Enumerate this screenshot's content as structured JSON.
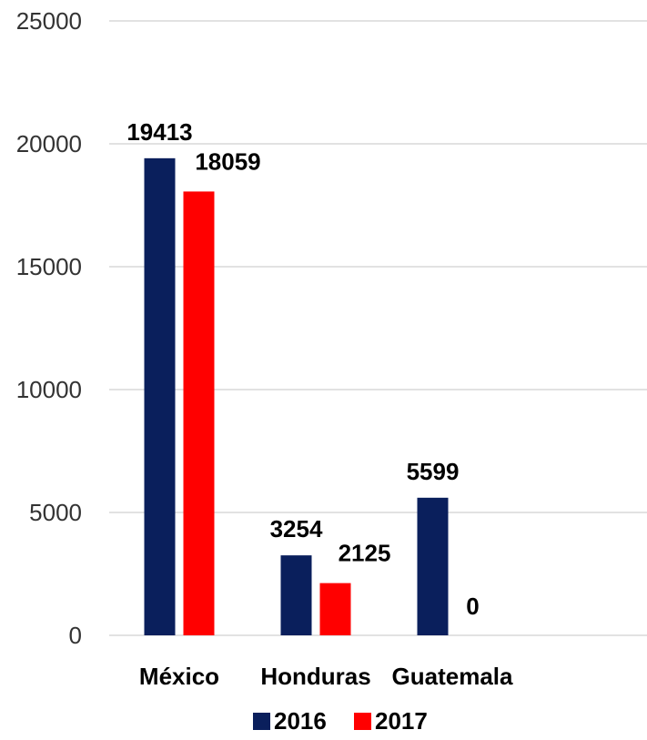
{
  "chart_data": {
    "type": "bar",
    "categories": [
      "México",
      "Honduras",
      "Guatemala"
    ],
    "series": [
      {
        "name": "2016",
        "color": "#0a1f5c",
        "values": [
          19413,
          3254,
          5599
        ]
      },
      {
        "name": "2017",
        "color": "#ff0000",
        "values": [
          18059,
          2125,
          0
        ]
      }
    ],
    "ylim": [
      0,
      25000
    ],
    "yticks": [
      0,
      5000,
      10000,
      15000,
      20000,
      25000
    ],
    "grid": true,
    "legend_position": "bottom",
    "data_labels": true
  }
}
